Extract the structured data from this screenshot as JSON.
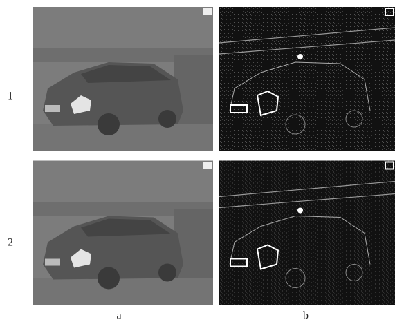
{
  "figure": {
    "rows": [
      "1",
      "2"
    ],
    "columns": [
      "a",
      "b"
    ]
  }
}
